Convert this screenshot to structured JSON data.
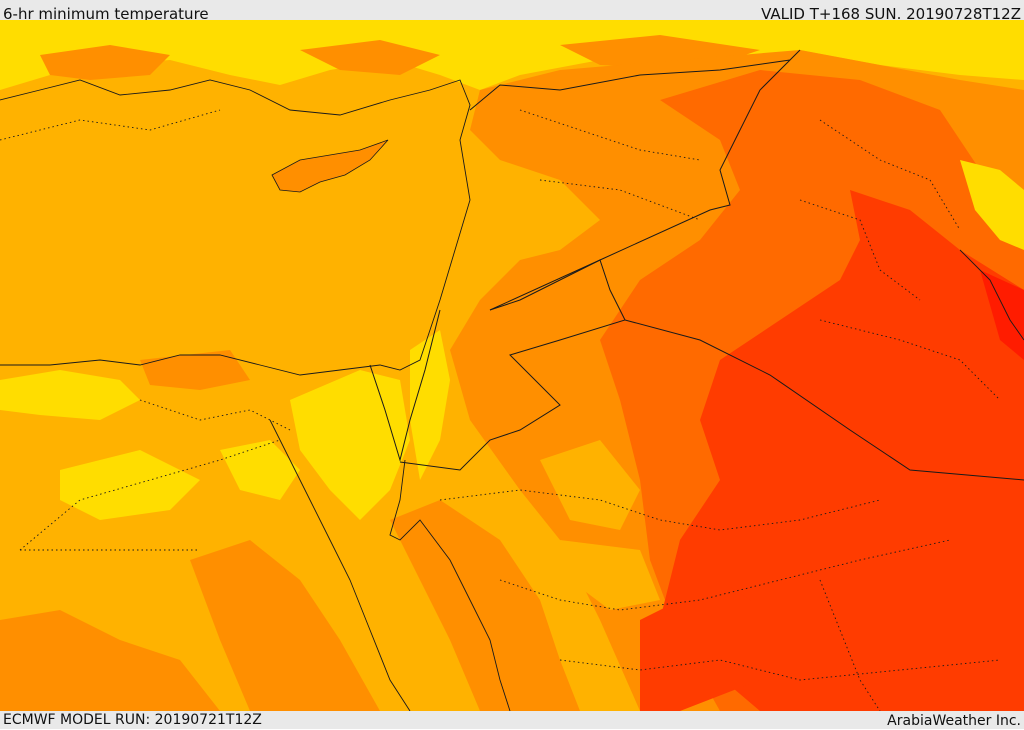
{
  "header": {
    "title": "6-hr minimum temperature",
    "valid": "VALID T+168 SUN. 20190728T12Z"
  },
  "footer": {
    "model_run": "ECMWF MODEL RUN: 20190721T12Z",
    "credit": "ArabiaWeather Inc."
  },
  "colors": {
    "yellow": "#ffdd00",
    "light_orange": "#ffb200",
    "orange": "#ff8f00",
    "dark_orange": "#ff6a00",
    "red": "#ff3c00",
    "deep_red": "#ff1c00",
    "border": "#1a1a1a"
  }
}
